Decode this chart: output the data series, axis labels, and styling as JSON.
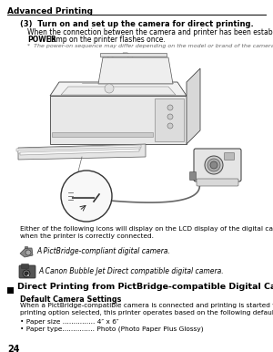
{
  "bg_color": "#ffffff",
  "header_text": "Advanced Printing",
  "step3_title": "(3)  Turn on and set up the camera for direct printing.",
  "step3_body1": "When the connection between the camera and printer has been established, the",
  "step3_power": "POWER",
  "step3_body1b": " lamp on the printer flashes once.",
  "step3_note": "*  The power-on sequence may differ depending on the model or brand of the camera.",
  "icons_intro1": "Either of the following icons will display on the LCD display of the digital camera",
  "icons_intro2": "when the printer is correctly connected.",
  "icon1_text": "A PictBridge-compliant digital camera.",
  "icon2_text": "A Canon Bubble Jet Direct compatible digital camera.",
  "section_title": "Direct Printing from PictBridge-compatible Digital Cameras",
  "subsection_title": "Default Camera Settings",
  "body2_line1": "When a PictBridge-compatible camera is connected and printing is started with no",
  "body2_line2": "printing option selected, this printer operates based on the following default settings:",
  "bullet1": "• Paper size ............... 4″ x 6″",
  "bullet2": "• Paper type............... Photo (Photo Paper Plus Glossy)",
  "page_number": "24",
  "text_color": "#000000",
  "note_color": "#666666"
}
